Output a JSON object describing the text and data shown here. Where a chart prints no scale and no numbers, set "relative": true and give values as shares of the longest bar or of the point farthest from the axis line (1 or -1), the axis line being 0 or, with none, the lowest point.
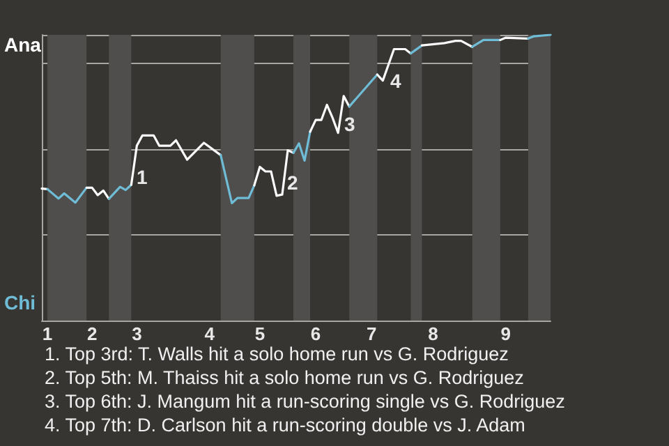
{
  "chart_data": {
    "type": "line",
    "relative": true,
    "categories": [
      null,
      "1",
      null,
      null,
      null,
      null,
      null,
      null,
      null,
      "2",
      null,
      null,
      null,
      null,
      null,
      null,
      null,
      "3",
      null,
      null,
      null,
      null,
      null,
      null,
      null,
      null,
      null,
      null,
      null,
      null,
      "4",
      null,
      null,
      null,
      null,
      null,
      null,
      null,
      null,
      "5",
      null,
      null,
      null,
      null,
      null,
      null,
      null,
      null,
      null,
      "6",
      null,
      null,
      null,
      null,
      null,
      null,
      null,
      null,
      null,
      "7",
      null,
      null,
      null,
      null,
      null,
      null,
      null,
      null,
      null,
      null,
      "8",
      null,
      null,
      null,
      null,
      null,
      null,
      null,
      null,
      null,
      null,
      null,
      null,
      "9",
      null,
      null,
      null,
      null,
      null,
      null,
      null,
      null
    ],
    "grid": "y",
    "marker": "none",
    "series": [
      {
        "color": "#ffffff",
        "values": [
          0.462,
          0.46,
          null,
          null,
          null,
          null,
          null,
          null,
          null,
          null,
          null,
          null,
          null,
          null,
          null,
          null,
          null,
          null,
          null,
          null,
          null,
          null,
          null,
          null,
          null,
          null,
          null,
          null,
          null,
          null,
          null,
          null,
          null,
          null,
          null,
          null,
          null,
          null,
          null,
          null,
          null,
          null,
          null,
          null,
          null,
          null,
          null,
          null,
          null,
          null,
          null,
          null,
          null,
          null,
          null,
          null,
          null,
          null,
          null,
          null,
          null,
          null,
          null,
          null,
          null,
          null,
          null,
          null,
          null,
          null,
          null,
          null,
          null,
          null,
          null,
          null,
          null,
          null,
          null,
          null,
          null,
          null,
          null,
          null,
          null,
          null,
          null,
          null,
          null,
          null,
          null,
          null
        ]
      },
      {
        "color": "#6fbcd6",
        "values": [
          null,
          0.46,
          null,
          0.427,
          0.445,
          null,
          0.413,
          null,
          0.465,
          null,
          null,
          null,
          null,
          null,
          null,
          null,
          null,
          null,
          null,
          null,
          null,
          null,
          null,
          null,
          null,
          null,
          null,
          null,
          null,
          null,
          null,
          null,
          null,
          null,
          null,
          null,
          null,
          null,
          null,
          null,
          null,
          null,
          null,
          null,
          null,
          null,
          null,
          null,
          null,
          null,
          null,
          null,
          null,
          null,
          null,
          null,
          null,
          null,
          null,
          null,
          null,
          null,
          null,
          null,
          null,
          null,
          null,
          null,
          null,
          null,
          null,
          null,
          null,
          null,
          null,
          null,
          null,
          null,
          null,
          null,
          null,
          null,
          null,
          null,
          null,
          null,
          null,
          null,
          null,
          null,
          null,
          null
        ]
      },
      {
        "color": "#fefefe",
        "values": [
          null,
          null,
          null,
          null,
          null,
          null,
          null,
          null,
          0.465,
          0.465,
          0.439,
          0.455,
          0.426,
          null,
          null,
          null,
          null,
          null,
          null,
          null,
          null,
          null,
          null,
          null,
          null,
          null,
          null,
          null,
          null,
          null,
          null,
          null,
          null,
          null,
          null,
          null,
          null,
          null,
          null,
          null,
          null,
          null,
          null,
          null,
          null,
          null,
          null,
          null,
          null,
          null,
          null,
          null,
          null,
          null,
          null,
          null,
          null,
          null,
          null,
          null,
          null,
          null,
          null,
          null,
          null,
          null,
          null,
          null,
          null,
          null,
          null,
          null,
          null,
          null,
          null,
          null,
          null,
          null,
          null,
          null,
          null,
          null,
          null,
          null,
          null,
          null,
          null,
          null,
          null,
          null,
          null,
          null
        ]
      },
      {
        "color": "#6fbcd6",
        "values": [
          null,
          null,
          null,
          null,
          null,
          null,
          null,
          null,
          null,
          null,
          null,
          null,
          0.426,
          null,
          0.468,
          0.457,
          0.475,
          null,
          null,
          null,
          null,
          null,
          null,
          null,
          null,
          null,
          null,
          null,
          null,
          null,
          null,
          null,
          null,
          null,
          null,
          null,
          null,
          null,
          null,
          null,
          null,
          null,
          null,
          null,
          null,
          null,
          null,
          null,
          null,
          null,
          null,
          null,
          null,
          null,
          null,
          null,
          null,
          null,
          null,
          null,
          null,
          null,
          null,
          null,
          null,
          null,
          null,
          null,
          null,
          null,
          null,
          null,
          null,
          null,
          null,
          null,
          null,
          null,
          null,
          null,
          null,
          null,
          null,
          null,
          null,
          null,
          null,
          null,
          null,
          null,
          null,
          null
        ]
      },
      {
        "color": "#fdfdfd",
        "values": [
          null,
          null,
          null,
          null,
          null,
          null,
          null,
          null,
          null,
          null,
          null,
          null,
          null,
          null,
          null,
          null,
          0.475,
          0.612,
          0.648,
          null,
          0.648,
          0.612,
          null,
          0.612,
          0.631,
          null,
          0.563,
          null,
          null,
          0.622,
          null,
          null,
          0.579,
          null,
          null,
          null,
          null,
          null,
          null,
          null,
          null,
          null,
          null,
          null,
          null,
          null,
          null,
          null,
          null,
          null,
          null,
          null,
          null,
          null,
          null,
          null,
          null,
          null,
          null,
          null,
          null,
          null,
          null,
          null,
          null,
          null,
          null,
          null,
          null,
          null,
          null,
          null,
          null,
          null,
          null,
          null,
          null,
          null,
          null,
          null,
          null,
          null,
          null,
          null,
          null,
          null,
          null,
          null,
          null,
          null,
          null,
          null
        ]
      },
      {
        "color": "#6fbcd6",
        "values": [
          null,
          null,
          null,
          null,
          null,
          null,
          null,
          null,
          null,
          null,
          null,
          null,
          null,
          null,
          null,
          null,
          null,
          null,
          null,
          null,
          null,
          null,
          null,
          null,
          null,
          null,
          null,
          null,
          null,
          null,
          null,
          null,
          0.579,
          null,
          0.411,
          0.429,
          null,
          0.429,
          0.473,
          null,
          null,
          null,
          null,
          null,
          null,
          null,
          null,
          null,
          null,
          null,
          null,
          null,
          null,
          null,
          null,
          null,
          null,
          null,
          null,
          null,
          null,
          null,
          null,
          null,
          null,
          null,
          null,
          null,
          null,
          null,
          null,
          null,
          null,
          null,
          null,
          null,
          null,
          null,
          null,
          null,
          null,
          null,
          null,
          null,
          null,
          null,
          null,
          null,
          null,
          null,
          null,
          null
        ]
      },
      {
        "color": "#fcfcfc",
        "values": [
          null,
          null,
          null,
          null,
          null,
          null,
          null,
          null,
          null,
          null,
          null,
          null,
          null,
          null,
          null,
          null,
          null,
          null,
          null,
          null,
          null,
          null,
          null,
          null,
          null,
          null,
          null,
          null,
          null,
          null,
          null,
          null,
          null,
          null,
          null,
          null,
          null,
          null,
          0.473,
          0.538,
          0.522,
          0.522,
          0.437,
          0.441,
          0.596,
          0.587,
          null,
          null,
          null,
          null,
          null,
          null,
          null,
          null,
          null,
          null,
          null,
          null,
          null,
          null,
          null,
          null,
          null,
          null,
          null,
          null,
          null,
          null,
          null,
          null,
          null,
          null,
          null,
          null,
          null,
          null,
          null,
          null,
          null,
          null,
          null,
          null,
          null,
          null,
          null,
          null,
          null,
          null,
          null,
          null,
          null,
          null
        ]
      },
      {
        "color": "#6fbcd6",
        "values": [
          null,
          null,
          null,
          null,
          null,
          null,
          null,
          null,
          null,
          null,
          null,
          null,
          null,
          null,
          null,
          null,
          null,
          null,
          null,
          null,
          null,
          null,
          null,
          null,
          null,
          null,
          null,
          null,
          null,
          null,
          null,
          null,
          null,
          null,
          null,
          null,
          null,
          null,
          null,
          null,
          null,
          null,
          null,
          null,
          null,
          0.587,
          0.62,
          0.56,
          0.661,
          null,
          null,
          null,
          null,
          null,
          null,
          null,
          null,
          null,
          null,
          null,
          null,
          null,
          null,
          null,
          null,
          null,
          null,
          null,
          null,
          null,
          null,
          null,
          null,
          null,
          null,
          null,
          null,
          null,
          null,
          null,
          null,
          null,
          null,
          null,
          null,
          null,
          null,
          null,
          null,
          null,
          null,
          null
        ]
      },
      {
        "color": "#fbfbfb",
        "values": [
          null,
          null,
          null,
          null,
          null,
          null,
          null,
          null,
          null,
          null,
          null,
          null,
          null,
          null,
          null,
          null,
          null,
          null,
          null,
          null,
          null,
          null,
          null,
          null,
          null,
          null,
          null,
          null,
          null,
          null,
          null,
          null,
          null,
          null,
          null,
          null,
          null,
          null,
          null,
          null,
          null,
          null,
          null,
          null,
          null,
          null,
          null,
          null,
          0.661,
          0.702,
          0.702,
          0.755,
          0.71,
          0.657,
          0.786,
          0.749,
          null,
          null,
          null,
          null,
          null,
          null,
          null,
          null,
          null,
          null,
          null,
          null,
          null,
          null,
          null,
          null,
          null,
          null,
          null,
          null,
          null,
          null,
          null,
          null,
          null,
          null,
          null,
          null,
          null,
          null,
          null,
          null,
          null,
          null,
          null,
          null
        ]
      },
      {
        "color": "#6fbcd6",
        "values": [
          null,
          null,
          null,
          null,
          null,
          null,
          null,
          null,
          null,
          null,
          null,
          null,
          null,
          null,
          null,
          null,
          null,
          null,
          null,
          null,
          null,
          null,
          null,
          null,
          null,
          null,
          null,
          null,
          null,
          null,
          null,
          null,
          null,
          null,
          null,
          null,
          null,
          null,
          null,
          null,
          null,
          null,
          null,
          null,
          null,
          null,
          null,
          null,
          null,
          null,
          null,
          null,
          null,
          null,
          null,
          0.749,
          null,
          0.794,
          null,
          null,
          0.861,
          null,
          null,
          null,
          null,
          null,
          null,
          null,
          null,
          null,
          null,
          null,
          null,
          null,
          null,
          null,
          null,
          null,
          null,
          null,
          null,
          null,
          null,
          null,
          null,
          null,
          null,
          null,
          null,
          null,
          null,
          null
        ]
      },
      {
        "color": "#fafafa",
        "values": [
          null,
          null,
          null,
          null,
          null,
          null,
          null,
          null,
          null,
          null,
          null,
          null,
          null,
          null,
          null,
          null,
          null,
          null,
          null,
          null,
          null,
          null,
          null,
          null,
          null,
          null,
          null,
          null,
          null,
          null,
          null,
          null,
          null,
          null,
          null,
          null,
          null,
          null,
          null,
          null,
          null,
          null,
          null,
          null,
          null,
          null,
          null,
          null,
          null,
          null,
          null,
          null,
          null,
          null,
          null,
          null,
          null,
          null,
          null,
          null,
          0.861,
          0.84,
          null,
          0.95,
          null,
          0.95,
          0.935,
          null,
          null,
          null,
          null,
          null,
          null,
          null,
          null,
          null,
          null,
          null,
          null,
          null,
          null,
          null,
          null,
          null,
          null,
          null,
          null,
          null,
          null,
          null,
          null,
          null
        ]
      },
      {
        "color": "#6fbcd6",
        "values": [
          null,
          null,
          null,
          null,
          null,
          null,
          null,
          null,
          null,
          null,
          null,
          null,
          null,
          null,
          null,
          null,
          null,
          null,
          null,
          null,
          null,
          null,
          null,
          null,
          null,
          null,
          null,
          null,
          null,
          null,
          null,
          null,
          null,
          null,
          null,
          null,
          null,
          null,
          null,
          null,
          null,
          null,
          null,
          null,
          null,
          null,
          null,
          null,
          null,
          null,
          null,
          null,
          null,
          null,
          null,
          null,
          null,
          null,
          null,
          null,
          null,
          null,
          null,
          null,
          null,
          null,
          0.935,
          null,
          0.963,
          null,
          null,
          null,
          null,
          null,
          null,
          null,
          null,
          null,
          null,
          null,
          null,
          null,
          null,
          null,
          null,
          null,
          null,
          null,
          null,
          null,
          null,
          null
        ]
      },
      {
        "color": "#f9f9f9",
        "values": [
          null,
          null,
          null,
          null,
          null,
          null,
          null,
          null,
          null,
          null,
          null,
          null,
          null,
          null,
          null,
          null,
          null,
          null,
          null,
          null,
          null,
          null,
          null,
          null,
          null,
          null,
          null,
          null,
          null,
          null,
          null,
          null,
          null,
          null,
          null,
          null,
          null,
          null,
          null,
          null,
          null,
          null,
          null,
          null,
          null,
          null,
          null,
          null,
          null,
          null,
          null,
          null,
          null,
          null,
          null,
          null,
          null,
          null,
          null,
          null,
          null,
          null,
          null,
          null,
          null,
          null,
          null,
          null,
          0.963,
          null,
          null,
          null,
          0.971,
          null,
          0.979,
          0.979,
          null,
          0.958,
          null,
          null,
          null,
          null,
          null,
          null,
          null,
          null,
          null,
          null,
          null,
          null,
          null,
          null
        ]
      },
      {
        "color": "#6fbcd6",
        "values": [
          null,
          null,
          null,
          null,
          null,
          null,
          null,
          null,
          null,
          null,
          null,
          null,
          null,
          null,
          null,
          null,
          null,
          null,
          null,
          null,
          null,
          null,
          null,
          null,
          null,
          null,
          null,
          null,
          null,
          null,
          null,
          null,
          null,
          null,
          null,
          null,
          null,
          null,
          null,
          null,
          null,
          null,
          null,
          null,
          null,
          null,
          null,
          null,
          null,
          null,
          null,
          null,
          null,
          null,
          null,
          null,
          null,
          null,
          null,
          null,
          null,
          null,
          null,
          null,
          null,
          null,
          null,
          null,
          null,
          null,
          null,
          null,
          null,
          null,
          null,
          null,
          null,
          0.958,
          null,
          0.982,
          null,
          null,
          0.982,
          null,
          null,
          null,
          null,
          null,
          null,
          null,
          null,
          null
        ]
      },
      {
        "color": "#f8f8f8",
        "values": [
          null,
          null,
          null,
          null,
          null,
          null,
          null,
          null,
          null,
          null,
          null,
          null,
          null,
          null,
          null,
          null,
          null,
          null,
          null,
          null,
          null,
          null,
          null,
          null,
          null,
          null,
          null,
          null,
          null,
          null,
          null,
          null,
          null,
          null,
          null,
          null,
          null,
          null,
          null,
          null,
          null,
          null,
          null,
          null,
          null,
          null,
          null,
          null,
          null,
          null,
          null,
          null,
          null,
          null,
          null,
          null,
          null,
          null,
          null,
          null,
          null,
          null,
          null,
          null,
          null,
          null,
          null,
          null,
          null,
          null,
          null,
          null,
          null,
          null,
          null,
          null,
          null,
          null,
          null,
          null,
          null,
          null,
          0.982,
          0.99,
          null,
          null,
          null,
          0.987,
          null,
          null,
          null,
          null
        ]
      },
      {
        "color": "#6fbcd6",
        "values": [
          null,
          null,
          null,
          null,
          null,
          null,
          null,
          null,
          null,
          null,
          null,
          null,
          null,
          null,
          null,
          null,
          null,
          null,
          null,
          null,
          null,
          null,
          null,
          null,
          null,
          null,
          null,
          null,
          null,
          null,
          null,
          null,
          null,
          null,
          null,
          null,
          null,
          null,
          null,
          null,
          null,
          null,
          null,
          null,
          null,
          null,
          null,
          null,
          null,
          null,
          null,
          null,
          null,
          null,
          null,
          null,
          null,
          null,
          null,
          null,
          null,
          null,
          null,
          null,
          null,
          null,
          null,
          null,
          null,
          null,
          null,
          null,
          null,
          null,
          null,
          null,
          null,
          null,
          null,
          null,
          null,
          null,
          null,
          null,
          null,
          null,
          null,
          0.987,
          0.995,
          null,
          null,
          1
        ]
      }
    ],
    "annotations": [
      "Ana",
      "Chi",
      "1",
      "2",
      "3",
      "4",
      "1. Top 3rd: T. Walls hit a solo home run vs G. Rodriguez",
      "2. Top 5th: M. Thaiss hit a solo home run vs G. Rodriguez",
      "3. Top 6th: J. Mangum hit a run-scoring single vs G. Rodriguez",
      "4. Top 7th: D. Carlson hit a run-scoring double vs J. Adam"
    ]
  }
}
